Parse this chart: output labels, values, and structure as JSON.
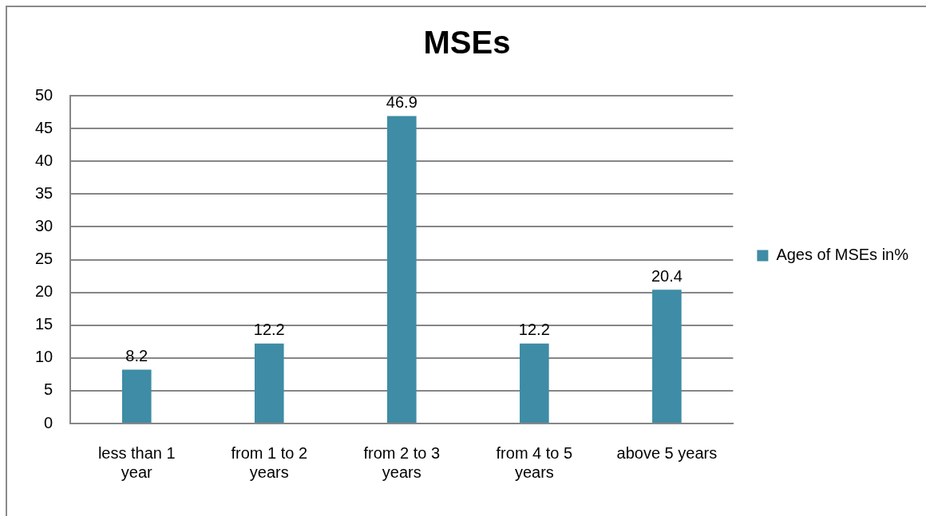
{
  "chart_data": {
    "type": "bar",
    "title": "MSEs",
    "categories": [
      "less than 1 year",
      "from 1 to 2 years",
      "from 2 to 3 years",
      "from 4 to 5 years",
      "above 5 years"
    ],
    "series": [
      {
        "name": "Ages of MSEs in%",
        "color": "#3e8ca5",
        "values": [
          8.2,
          12.2,
          46.9,
          12.2,
          20.4
        ]
      }
    ],
    "ylim": [
      0,
      50
    ],
    "yticks": [
      0,
      5,
      10,
      15,
      20,
      25,
      30,
      35,
      40,
      45,
      50
    ],
    "grid": "y",
    "legend": "right",
    "data_labels": true
  }
}
